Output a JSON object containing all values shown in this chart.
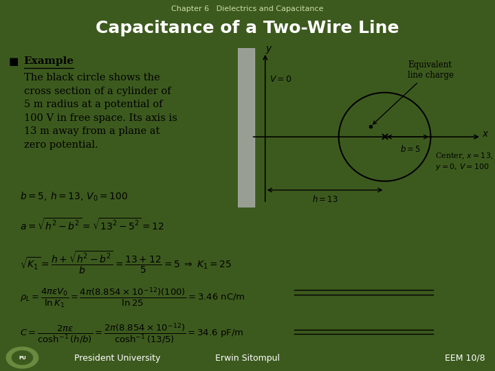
{
  "bg_dark_green": "#3d5a1e",
  "bg_content": "#f0f0e8",
  "title_text": "Capacitance of a Two-Wire Line",
  "subtitle_text": "Chapter 6   Dielectrics and Capacitance",
  "title_color": "#ffffff",
  "subtitle_color": "#ccddaa",
  "footer_left": "President University",
  "footer_center": "Erwin Sitompul",
  "footer_right": "EEM 10/8",
  "example_bullet": "Example",
  "example_text": "The black circle shows the\ncross section of a cylinder of\n5 m radius at a potential of\n100 V in free space. Its axis is\n13 m away from a plane at\nzero potential.",
  "formula1": "$b = 5,\\, h = 13,\\, V_0 = 100$",
  "formula2": "$a = \\sqrt{h^2 - b^2} = \\sqrt{13^2 - 5^2} = 12$",
  "formula3": "$\\sqrt{K_1} = \\dfrac{h + \\sqrt{h^2 - b^2}}{b} = \\dfrac{13 + 12}{5} = 5 \\;\\Rightarrow\\; K_1 = 25$",
  "formula4": "$\\rho_L = \\dfrac{4\\pi\\varepsilon V_0}{\\ln K_1} = \\dfrac{4\\pi(8.854\\times 10^{-12})(100)}{\\ln 25} = 3.46\\ \\mathrm{nC/m}$",
  "formula5": "$C = \\dfrac{2\\pi\\varepsilon}{\\cosh^{-1}(h/b)} = \\dfrac{2\\pi(8.854\\times 10^{-12})}{\\cosh^{-1}(13/5)} = 34.6\\ \\mathrm{pF/m}$"
}
